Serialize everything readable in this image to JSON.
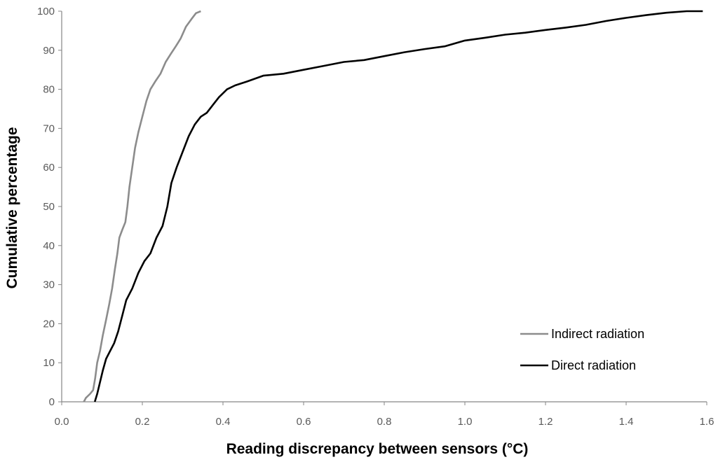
{
  "chart_data": {
    "type": "line",
    "title": "",
    "xlabel": "Reading discrepancy between sensors (°C)",
    "ylabel": "Cumulative percentage",
    "xlim": [
      0,
      1.6
    ],
    "ylim": [
      0,
      100
    ],
    "x_ticks": [
      "0.0",
      "0.2",
      "0.4",
      "0.6",
      "0.8",
      "1.0",
      "1.2",
      "1.4",
      "1.6"
    ],
    "y_ticks": [
      "0",
      "10",
      "20",
      "30",
      "40",
      "50",
      "60",
      "70",
      "80",
      "90",
      "100"
    ],
    "grid": false,
    "legend_position": "bottom-right",
    "series": [
      {
        "name": "Indirect radiation",
        "color": "#8c8c8c",
        "points": [
          [
            0.055,
            0
          ],
          [
            0.06,
            1
          ],
          [
            0.07,
            2
          ],
          [
            0.078,
            3
          ],
          [
            0.083,
            6
          ],
          [
            0.088,
            10
          ],
          [
            0.095,
            13
          ],
          [
            0.102,
            17
          ],
          [
            0.11,
            21
          ],
          [
            0.118,
            25
          ],
          [
            0.125,
            29
          ],
          [
            0.132,
            34
          ],
          [
            0.138,
            38
          ],
          [
            0.143,
            42
          ],
          [
            0.15,
            44
          ],
          [
            0.158,
            46
          ],
          [
            0.163,
            50
          ],
          [
            0.168,
            55
          ],
          [
            0.175,
            60
          ],
          [
            0.182,
            65
          ],
          [
            0.19,
            69
          ],
          [
            0.2,
            73
          ],
          [
            0.21,
            77
          ],
          [
            0.22,
            80
          ],
          [
            0.232,
            82
          ],
          [
            0.245,
            84
          ],
          [
            0.258,
            87
          ],
          [
            0.27,
            89
          ],
          [
            0.283,
            91
          ],
          [
            0.295,
            93
          ],
          [
            0.308,
            96
          ],
          [
            0.322,
            98
          ],
          [
            0.333,
            99.5
          ],
          [
            0.345,
            100
          ]
        ]
      },
      {
        "name": "Direct radiation",
        "color": "#000000",
        "points": [
          [
            0.082,
            0
          ],
          [
            0.088,
            2
          ],
          [
            0.095,
            5
          ],
          [
            0.102,
            8
          ],
          [
            0.11,
            11
          ],
          [
            0.12,
            13
          ],
          [
            0.13,
            15
          ],
          [
            0.14,
            18
          ],
          [
            0.15,
            22
          ],
          [
            0.16,
            26
          ],
          [
            0.175,
            29
          ],
          [
            0.19,
            33
          ],
          [
            0.205,
            36
          ],
          [
            0.22,
            38
          ],
          [
            0.235,
            42
          ],
          [
            0.25,
            45
          ],
          [
            0.262,
            50
          ],
          [
            0.272,
            56
          ],
          [
            0.285,
            60
          ],
          [
            0.3,
            64
          ],
          [
            0.315,
            68
          ],
          [
            0.33,
            71
          ],
          [
            0.345,
            73
          ],
          [
            0.36,
            74
          ],
          [
            0.375,
            76
          ],
          [
            0.39,
            78
          ],
          [
            0.41,
            80
          ],
          [
            0.43,
            81
          ],
          [
            0.46,
            82
          ],
          [
            0.5,
            83.5
          ],
          [
            0.55,
            84
          ],
          [
            0.6,
            85
          ],
          [
            0.65,
            86
          ],
          [
            0.7,
            87
          ],
          [
            0.75,
            87.5
          ],
          [
            0.8,
            88.5
          ],
          [
            0.85,
            89.5
          ],
          [
            0.9,
            90.3
          ],
          [
            0.95,
            91
          ],
          [
            1.0,
            92.5
          ],
          [
            1.05,
            93.2
          ],
          [
            1.1,
            94
          ],
          [
            1.15,
            94.5
          ],
          [
            1.2,
            95.2
          ],
          [
            1.25,
            95.8
          ],
          [
            1.3,
            96.5
          ],
          [
            1.35,
            97.5
          ],
          [
            1.4,
            98.3
          ],
          [
            1.45,
            99
          ],
          [
            1.5,
            99.6
          ],
          [
            1.55,
            100
          ],
          [
            1.59,
            100
          ]
        ]
      }
    ]
  }
}
